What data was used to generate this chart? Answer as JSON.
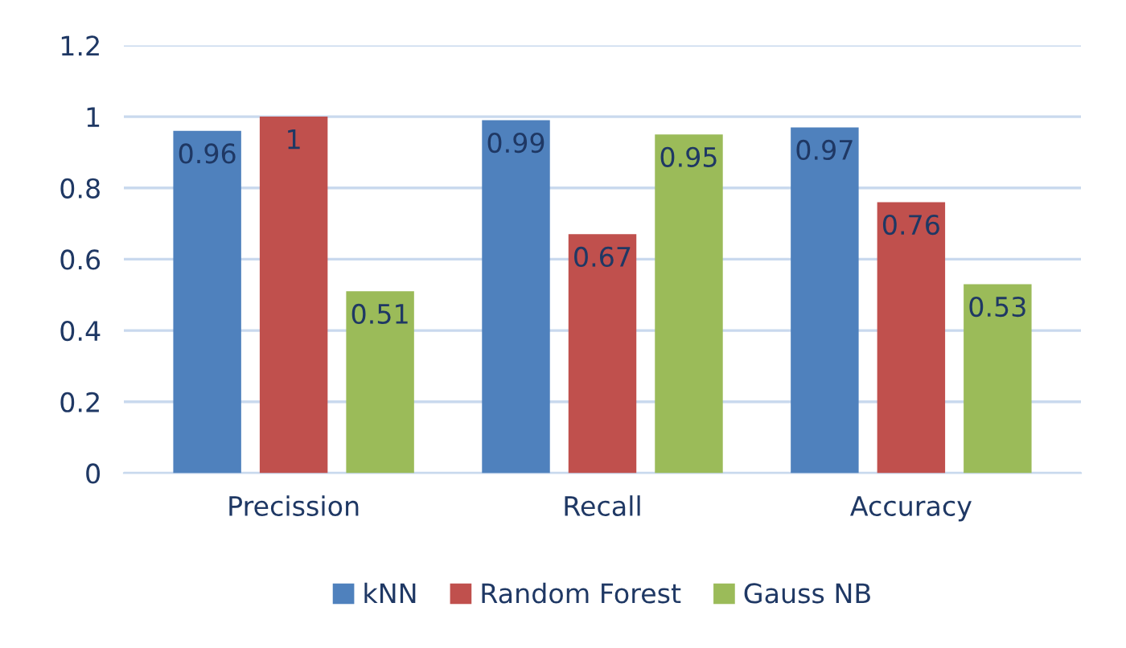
{
  "chart_data": {
    "type": "bar",
    "categories": [
      "Precission",
      "Recall",
      "Accuracy"
    ],
    "series": [
      {
        "name": "kNN",
        "color": "#4f81bd",
        "values": [
          0.96,
          0.99,
          0.97
        ]
      },
      {
        "name": "Random Forest",
        "color": "#c0504d",
        "values": [
          1,
          0.67,
          0.76
        ]
      },
      {
        "name": "Gauss NB",
        "color": "#9bbb59",
        "values": [
          0.51,
          0.95,
          0.53
        ]
      }
    ],
    "ylim": [
      0,
      1.2
    ],
    "yticks": [
      0,
      0.2,
      0.4,
      0.6,
      0.8,
      1,
      1.2
    ],
    "grid": "y",
    "legend": "bottom",
    "data_labels": true
  }
}
